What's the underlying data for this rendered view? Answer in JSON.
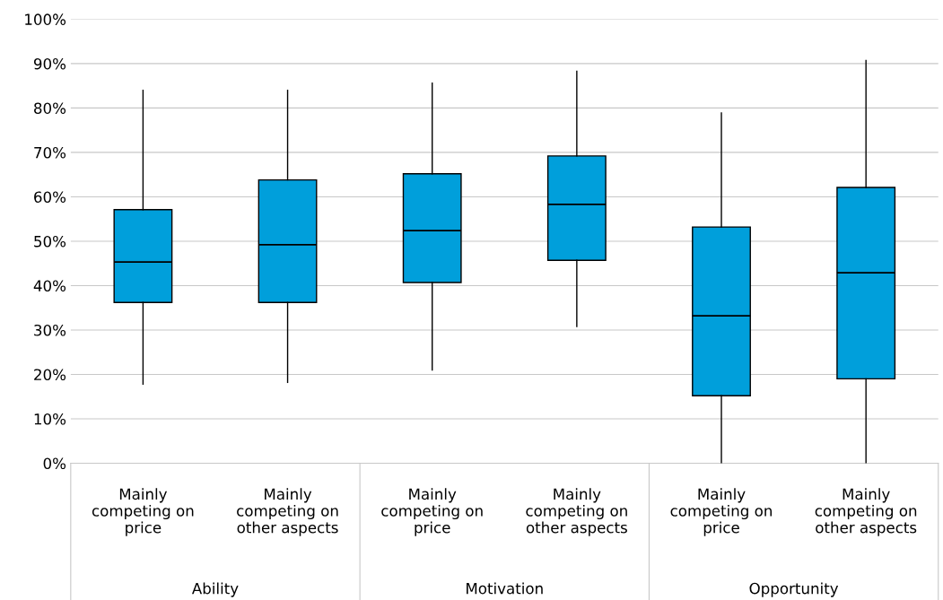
{
  "chart_data": {
    "type": "box",
    "categories": [
      "Mainly\ncompeting on\nprice",
      "Mainly\ncompeting on\nother aspects",
      "Mainly\ncompeting on\nprice",
      "Mainly\ncompeting on\nother aspects",
      "Mainly\ncompeting on\nprice",
      "Mainly\ncompeting on\nother aspects"
    ],
    "series": [
      {
        "color": "#009fdb",
        "boxes": [
          {
            "low": 17.8,
            "q1": 36.2,
            "median": 45.3,
            "q3": 57.1,
            "high": 84
          },
          {
            "low": 18.2,
            "q1": 36.2,
            "median": 49.2,
            "q3": 63.8,
            "high": 84
          },
          {
            "low": 21,
            "q1": 40.7,
            "median": 52.4,
            "q3": 65.2,
            "high": 85.6
          },
          {
            "low": 30.8,
            "q1": 45.7,
            "median": 58.3,
            "q3": 69.2,
            "high": 88.3
          },
          {
            "low": 0,
            "q1": 15.2,
            "median": 33.2,
            "q3": 53.2,
            "high": 78.9
          },
          {
            "low": 0,
            "q1": 19,
            "median": 42.9,
            "q3": 62.1,
            "high": 90.7
          }
        ]
      }
    ],
    "annotations": [
      "Ability",
      "Motivation",
      "Opportunity"
    ],
    "ylim": [
      0,
      100
    ],
    "yticks": [
      {
        "value": 0,
        "label": "0%"
      },
      {
        "value": 10,
        "label": "10%"
      },
      {
        "value": 20,
        "label": "20%"
      },
      {
        "value": 30,
        "label": "30%"
      },
      {
        "value": 40,
        "label": "40%"
      },
      {
        "value": 50,
        "label": "50%"
      },
      {
        "value": 60,
        "label": "60%"
      },
      {
        "value": 70,
        "label": "70%"
      },
      {
        "value": 80,
        "label": "80%"
      },
      {
        "value": 90,
        "label": "90%"
      },
      {
        "value": 100,
        "label": "100%"
      }
    ],
    "grid": "y",
    "legend": false
  }
}
